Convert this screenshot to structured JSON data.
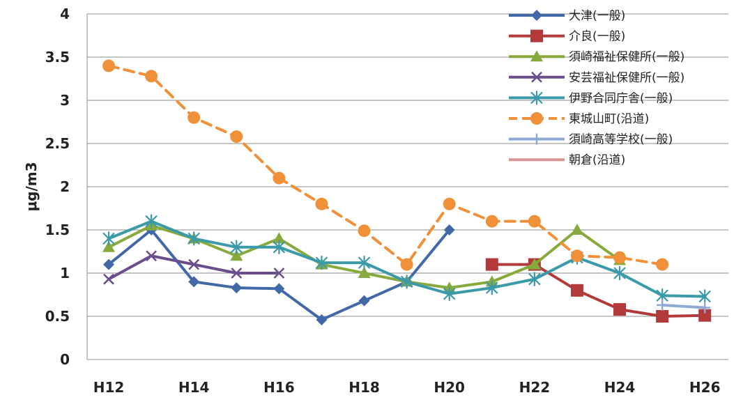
{
  "chart_data": {
    "type": "line",
    "ylabel": "μg/m3",
    "xlabel": "",
    "ylim": [
      0,
      4
    ],
    "y_ticks": [
      "0",
      "0.5",
      "1",
      "1.5",
      "2",
      "2.5",
      "3",
      "3.5",
      "4"
    ],
    "y_tick_values": [
      0,
      0.5,
      1,
      1.5,
      2,
      2.5,
      3,
      3.5,
      4
    ],
    "categories": [
      "H12",
      "H13",
      "H14",
      "H15",
      "H16",
      "H17",
      "H18",
      "H19",
      "H20",
      "H21",
      "H22",
      "H23",
      "H24",
      "H25",
      "H26"
    ],
    "x_tick_labels": [
      "H12",
      "",
      "H14",
      "",
      "H16",
      "",
      "H18",
      "",
      "H20",
      "",
      "H22",
      "",
      "H24",
      "",
      "H26"
    ],
    "grid": true,
    "legend_position": "top-right",
    "series": [
      {
        "name": "大津(一般)",
        "color": "#4169a8",
        "marker": "diamond",
        "dashed": false,
        "values": [
          1.1,
          1.5,
          0.9,
          0.83,
          0.82,
          0.46,
          0.68,
          0.9,
          1.5,
          null,
          null,
          null,
          null,
          null,
          null
        ]
      },
      {
        "name": "介良(一般)",
        "color": "#b33a3a",
        "marker": "square",
        "dashed": false,
        "values": [
          null,
          null,
          null,
          null,
          null,
          null,
          null,
          null,
          null,
          1.1,
          1.1,
          0.8,
          0.58,
          0.5,
          0.51
        ]
      },
      {
        "name": "須崎福祉保健所(一般)",
        "color": "#88aa3c",
        "marker": "triangle",
        "dashed": false,
        "values": [
          1.3,
          1.55,
          1.4,
          1.2,
          1.4,
          1.1,
          1.0,
          0.9,
          0.83,
          0.9,
          1.1,
          1.5,
          1.15,
          null,
          null
        ]
      },
      {
        "name": "安芸福祉保健所(一般)",
        "color": "#6a4d8c",
        "marker": "x",
        "dashed": false,
        "values": [
          0.93,
          1.2,
          1.1,
          1.0,
          1.0,
          null,
          null,
          null,
          null,
          null,
          null,
          null,
          null,
          null,
          null
        ]
      },
      {
        "name": "伊野合同庁舎(一般)",
        "color": "#3b9aaa",
        "marker": "star",
        "dashed": false,
        "values": [
          1.4,
          1.6,
          1.4,
          1.3,
          1.3,
          1.12,
          1.12,
          0.9,
          0.76,
          0.83,
          0.93,
          1.18,
          1.0,
          0.74,
          0.73
        ]
      },
      {
        "name": "東城山町(沿道)",
        "color": "#f0913a",
        "marker": "circle",
        "dashed": true,
        "values": [
          3.4,
          3.28,
          2.8,
          2.58,
          2.1,
          1.8,
          1.49,
          1.1,
          1.8,
          1.6,
          1.6,
          1.2,
          1.18,
          1.1,
          null
        ]
      },
      {
        "name": "須崎高等学校(一般)",
        "color": "#8fa9d6",
        "marker": "plus",
        "dashed": false,
        "values": [
          null,
          null,
          null,
          null,
          null,
          null,
          null,
          null,
          null,
          null,
          null,
          null,
          null,
          0.63,
          0.6
        ]
      },
      {
        "name": "朝倉(沿道)",
        "color": "#d99594",
        "marker": "none",
        "dashed": false,
        "values": [
          null,
          null,
          null,
          null,
          null,
          null,
          null,
          null,
          null,
          null,
          null,
          null,
          null,
          null,
          null
        ]
      }
    ]
  }
}
